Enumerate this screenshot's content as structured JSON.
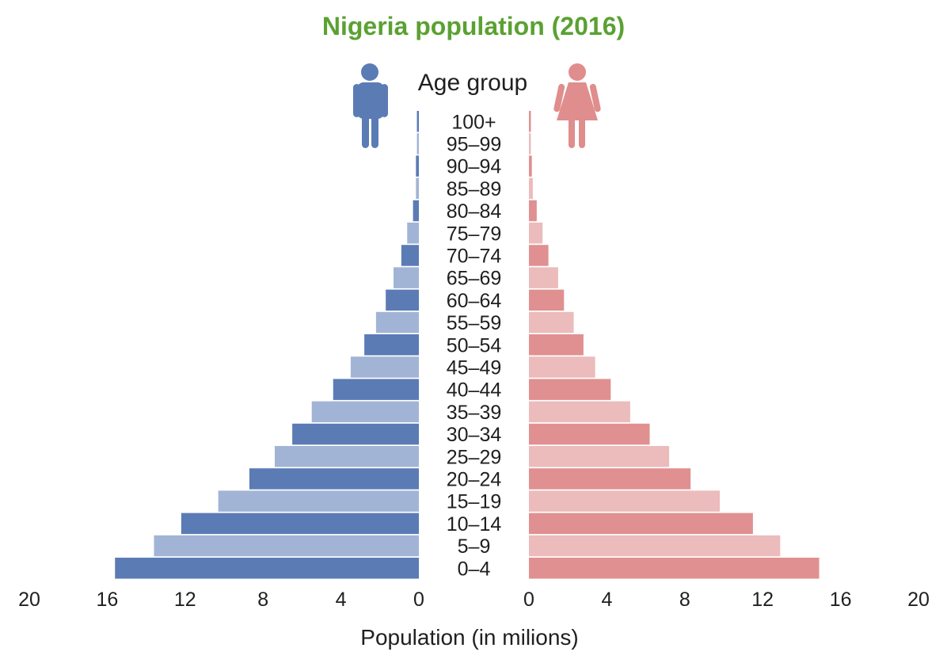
{
  "chart_data": {
    "type": "bar",
    "orientation": "horizontal-population-pyramid",
    "title": "Nigeria population (2016)",
    "category_header": "Age group",
    "xlabel": "Population (in milions)",
    "xlim": [
      0,
      20
    ],
    "x_ticks": [
      "20",
      "16",
      "12",
      "8",
      "4",
      "0",
      "0",
      "4",
      "8",
      "12",
      "16",
      "20"
    ],
    "grid": false,
    "categories": [
      "100+",
      "95–99",
      "90–94",
      "85–89",
      "80–84",
      "75–79",
      "70–74",
      "65–69",
      "60–64",
      "55–59",
      "50–54",
      "45–49",
      "40–44",
      "35–39",
      "30–34",
      "25–29",
      "20–24",
      "15–19",
      "10–14",
      "5–9",
      "0–4"
    ],
    "series": [
      {
        "side": "left",
        "icon": "male-icon",
        "values": [
          0.1,
          0.1,
          0.15,
          0.15,
          0.3,
          0.6,
          0.9,
          1.3,
          1.7,
          2.2,
          2.8,
          3.5,
          4.4,
          5.5,
          6.5,
          7.4,
          8.7,
          10.3,
          12.2,
          13.6,
          15.6
        ]
      },
      {
        "side": "right",
        "icon": "female-icon",
        "values": [
          0.1,
          0.1,
          0.15,
          0.2,
          0.4,
          0.7,
          1.0,
          1.5,
          1.8,
          2.3,
          2.8,
          3.4,
          4.2,
          5.2,
          6.2,
          7.2,
          8.3,
          9.8,
          11.5,
          12.9,
          14.9
        ]
      }
    ],
    "colors": {
      "title": "#5aa132",
      "male_dark": "#5b7bb5",
      "male_light": "#a2b4d6",
      "female_dark": "#e09090",
      "female_light": "#ecbbbb",
      "male_icon": "#5b7bb5",
      "female_icon": "#e08d8d"
    }
  }
}
